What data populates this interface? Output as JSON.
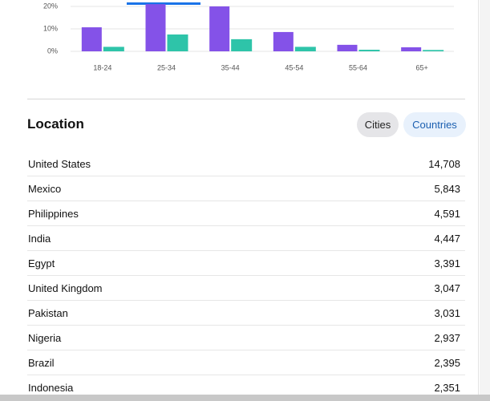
{
  "chart_data": {
    "type": "bar",
    "categories": [
      "18-24",
      "25-34",
      "35-44",
      "45-54",
      "55-64",
      "65+"
    ],
    "series": [
      {
        "color": "#8452e8",
        "values": [
          10.7,
          21,
          20,
          8.6,
          2.9,
          1.8
        ]
      },
      {
        "color": "#2ec4a9",
        "values": [
          2,
          7.5,
          5.4,
          2,
          0.7,
          0.6
        ]
      }
    ],
    "ylim": [
      0,
      20
    ],
    "yticks": [
      {
        "value": 0,
        "label": "0%"
      },
      {
        "value": 10,
        "label": "10%"
      },
      {
        "value": 20,
        "label": "20%"
      }
    ],
    "grid": true
  },
  "location": {
    "title": "Location",
    "tabs": [
      "Cities",
      "Countries"
    ],
    "rows": [
      [
        "United States",
        "14,708"
      ],
      [
        "Mexico",
        "5,843"
      ],
      [
        "Philippines",
        "4,591"
      ],
      [
        "India",
        "4,447"
      ],
      [
        "Egypt",
        "3,391"
      ],
      [
        "United Kingdom",
        "3,047"
      ],
      [
        "Pakistan",
        "3,031"
      ],
      [
        "Nigeria",
        "2,937"
      ],
      [
        "Brazil",
        "2,395"
      ],
      [
        "Indonesia",
        "2,351"
      ]
    ]
  }
}
